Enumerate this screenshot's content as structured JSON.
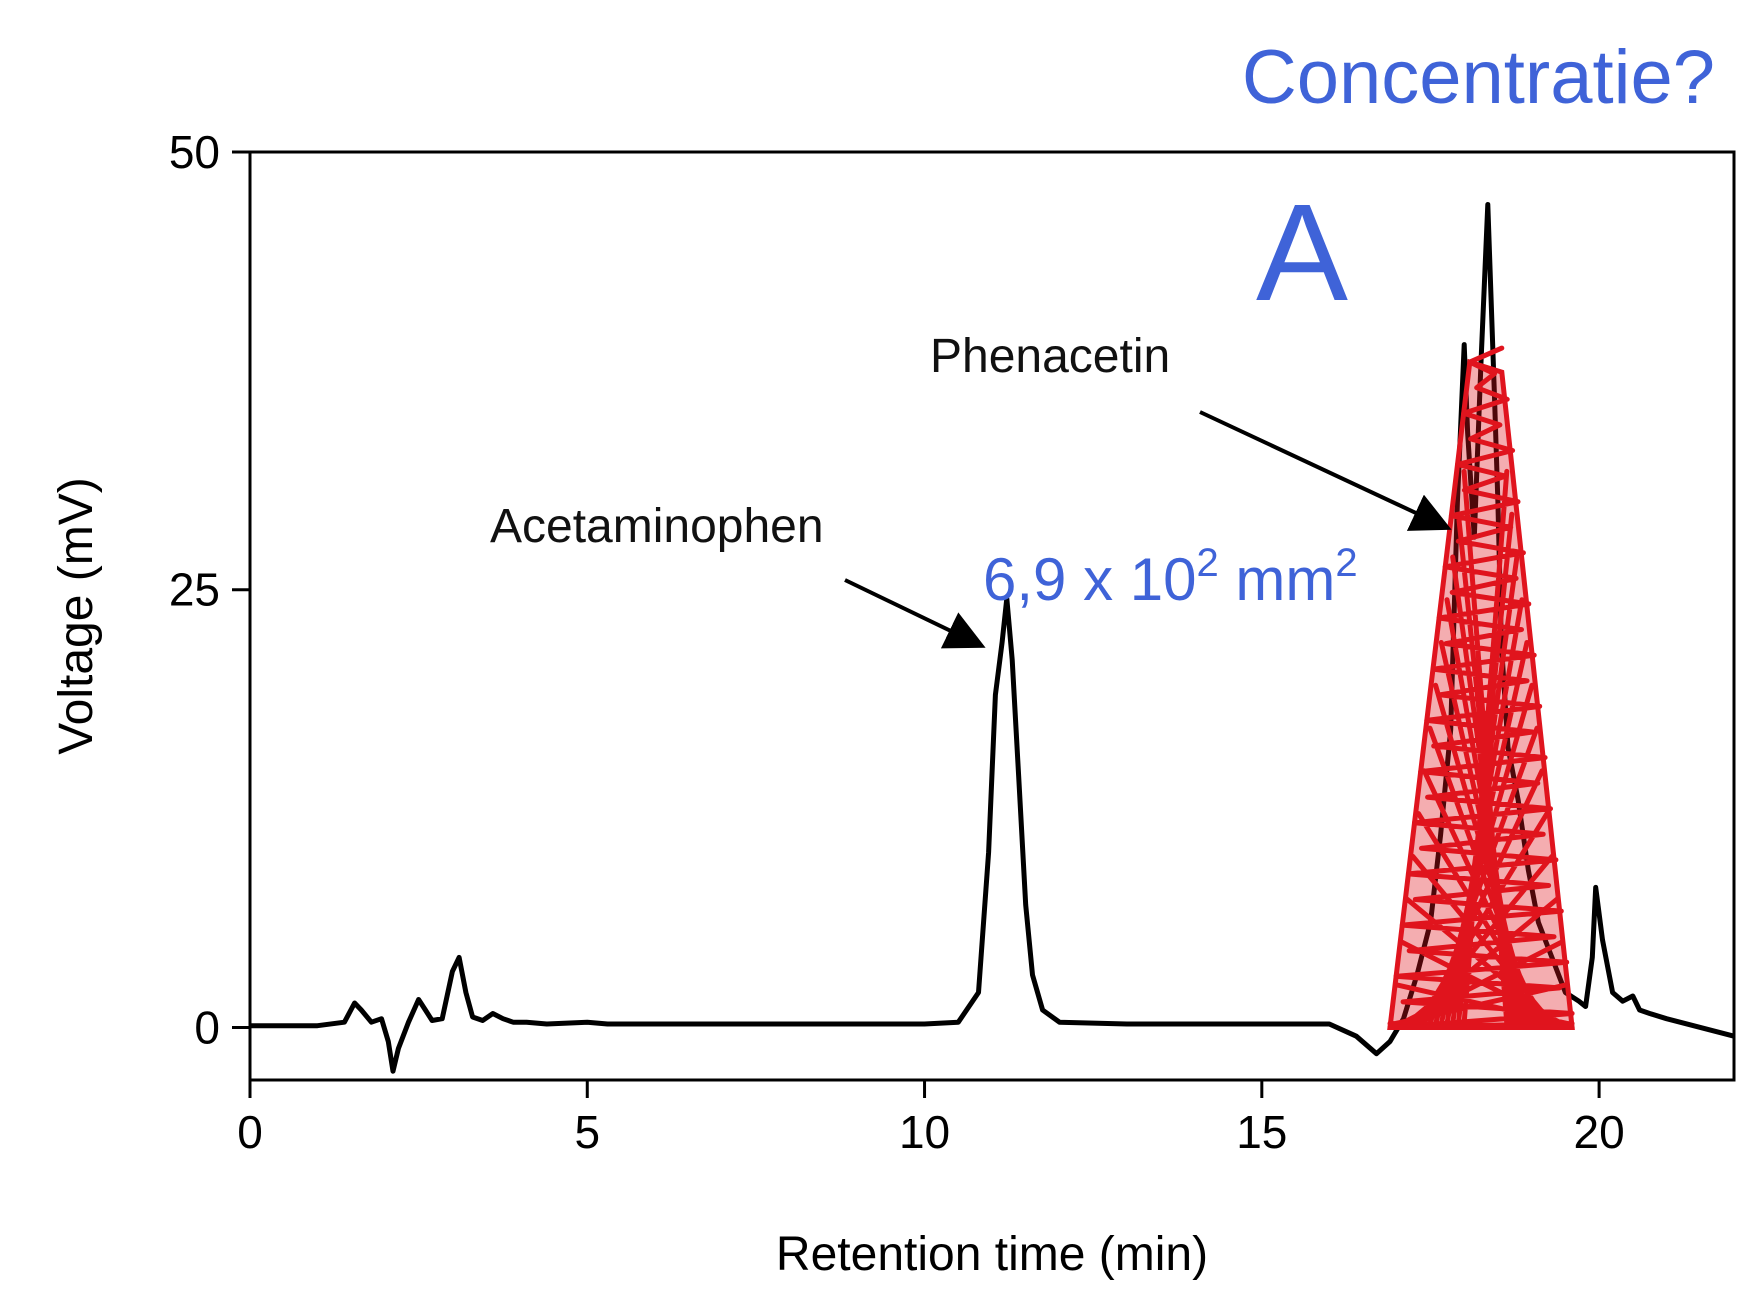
{
  "chart_data": {
    "type": "line",
    "title": "",
    "xlabel": "Retention time (min)",
    "ylabel": "Voltage (mV)",
    "xlim": [
      0,
      22
    ],
    "ylim": [
      -3,
      50
    ],
    "xticks": [
      0,
      5,
      10,
      15,
      20
    ],
    "yticks": [
      0,
      25,
      50
    ],
    "grid": false,
    "series": [
      {
        "name": "chromatogram",
        "color": "#000000",
        "x": [
          0,
          1.0,
          1.4,
          1.55,
          1.65,
          1.8,
          1.95,
          2.05,
          2.12,
          2.2,
          2.35,
          2.5,
          2.6,
          2.7,
          2.85,
          3.0,
          3.1,
          3.2,
          3.3,
          3.45,
          3.6,
          3.75,
          3.9,
          4.1,
          4.4,
          5.0,
          5.3,
          6.0,
          7.0,
          8.0,
          9.0,
          10.0,
          10.5,
          10.8,
          10.95,
          11.05,
          11.15,
          11.22,
          11.3,
          11.4,
          11.5,
          11.6,
          11.75,
          12.0,
          13.0,
          14.0,
          15.0,
          16.0,
          16.4,
          16.7,
          16.9,
          17.1,
          17.3,
          17.5,
          17.65,
          17.8,
          17.9,
          18.0,
          18.05,
          18.15,
          18.25,
          18.35,
          18.45,
          18.5,
          18.55,
          18.65,
          18.8,
          18.95,
          19.1,
          19.3,
          19.5,
          19.7,
          19.8,
          19.9,
          19.95,
          20.05,
          20.2,
          20.35,
          20.5,
          20.6,
          20.75,
          21.0,
          21.4,
          22.0
        ],
        "y": [
          0.1,
          0.1,
          0.3,
          1.4,
          1.0,
          0.3,
          0.5,
          -0.8,
          -2.5,
          -1.2,
          0.3,
          1.6,
          1.0,
          0.4,
          0.5,
          3.2,
          4.0,
          2.0,
          0.6,
          0.4,
          0.8,
          0.5,
          0.3,
          0.3,
          0.2,
          0.3,
          0.2,
          0.2,
          0.2,
          0.2,
          0.2,
          0.2,
          0.3,
          2.0,
          10.0,
          19.0,
          22.0,
          24.5,
          21.0,
          14.0,
          7.0,
          3.0,
          1.0,
          0.3,
          0.2,
          0.2,
          0.2,
          0.2,
          -0.5,
          -1.5,
          -0.8,
          0.5,
          3.0,
          6.0,
          11.0,
          17.0,
          30.0,
          39.0,
          34.0,
          28.0,
          38.0,
          47.0,
          36.0,
          30.0,
          22.0,
          16.0,
          13.0,
          9.0,
          6.0,
          4.0,
          2.0,
          1.5,
          1.2,
          4.0,
          8.0,
          5.0,
          2.0,
          1.5,
          1.8,
          1.0,
          0.8,
          0.5,
          0.1,
          -0.5
        ]
      }
    ],
    "annotations": [
      {
        "text": "Acetaminophen",
        "points_to": [
          11.1,
          22
        ]
      },
      {
        "text": "Phenacetin",
        "points_to": [
          17.7,
          29
        ]
      }
    ],
    "overlay_highlight": {
      "description": "red hand-drawn shading under Phenacetin peak",
      "color": "#e0141e",
      "x_range": [
        16.9,
        19.6
      ],
      "peak_y": 38
    }
  },
  "overlay_text": {
    "question": "Concentratie?",
    "letter": "A",
    "area_main": "6,9 x 10",
    "area_exp1": "2",
    "area_unit": " mm",
    "area_exp2": "2"
  },
  "colors": {
    "line": "#000000",
    "blue": "#3f63d8",
    "red": "#e0141e"
  }
}
